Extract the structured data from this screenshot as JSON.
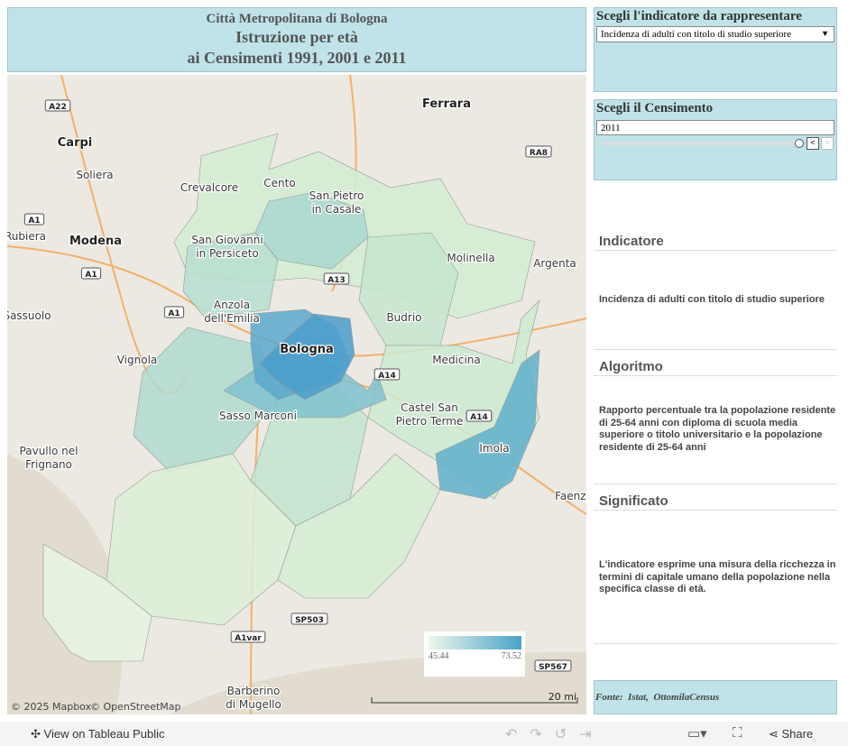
{
  "header": {
    "title_lines": [
      "Città Metropolitana di Bologna",
      "Istruzione per età",
      "ai Censimenti 1991, 2001 e 2011"
    ]
  },
  "filters": {
    "indicator": {
      "label": "Scegli l'indicatore da rappresentare",
      "value": "Incidenza di adulti con titolo di studio superiore"
    },
    "census": {
      "label": "Scegli il Censimento",
      "value": "2011"
    }
  },
  "map": {
    "places": [
      [
        "Ferrara"
      ],
      [
        "Carpi"
      ],
      [
        "Soliera"
      ],
      [
        "Crevalcore"
      ],
      [
        "Cento"
      ],
      [
        "San Pietro",
        "in Casale"
      ],
      [
        "Modena"
      ],
      [
        "Rubiera"
      ],
      [
        "San Giovanni",
        "in Persiceto"
      ],
      [
        "Molinella"
      ],
      [
        "Argenta"
      ],
      [
        "Anzola",
        "dell'Emilia"
      ],
      [
        "Sassuolo"
      ],
      [
        "Bologna"
      ],
      [
        "Budrio"
      ],
      [
        "Vignola"
      ],
      [
        "Medicina"
      ],
      [
        "Castel San",
        "Pietro Terme"
      ],
      [
        "Sasso Marconi"
      ],
      [
        "Imola"
      ],
      [
        "Pavullo nel",
        "Frignano"
      ],
      [
        "Faenza"
      ],
      [
        "Barberino",
        "di Mugello"
      ]
    ],
    "roads": [
      "A22",
      "RA8",
      "A1",
      "A1",
      "A1",
      "A13",
      "A14",
      "A14",
      "A14",
      "SP503",
      "A1var",
      "SP567"
    ],
    "legend": {
      "min": 45.44,
      "max": 73.52
    },
    "attribution": [
      "© 2025 Mapbox",
      "© OpenStreetMap"
    ],
    "scale": "20 mi"
  },
  "sections": [
    {
      "heading": "Indicatore",
      "text": "Incidenza di adulti con titolo di studio superiore"
    },
    {
      "heading": "Algoritmo",
      "text": "Rapporto percentuale tra la popolazione residente di 25-64 anni con diploma di scuola media superiore o titolo universitario e la popolazione residente di 25-64 anni"
    },
    {
      "heading": "Significato",
      "text": "L'indicatore esprime una misura della ricchezza in termini di capitale umano della popolazione nella specifica classe di età."
    }
  ],
  "source": "Fonte:  Istat,  OttomilaCensus",
  "toolbar": {
    "view": "View on Tableau Public",
    "share": "Share"
  }
}
